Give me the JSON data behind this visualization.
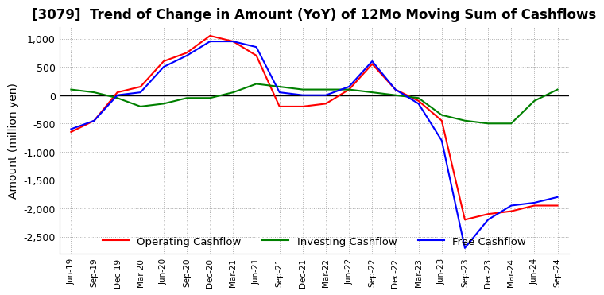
{
  "title": "[3079]  Trend of Change in Amount (YoY) of 12Mo Moving Sum of Cashflows",
  "ylabel": "Amount (million yen)",
  "x_labels": [
    "Jun-19",
    "Sep-19",
    "Dec-19",
    "Mar-20",
    "Jun-20",
    "Sep-20",
    "Dec-20",
    "Mar-21",
    "Jun-21",
    "Sep-21",
    "Dec-21",
    "Mar-22",
    "Jun-22",
    "Sep-22",
    "Dec-22",
    "Mar-23",
    "Jun-23",
    "Sep-23",
    "Dec-23",
    "Mar-24",
    "Jun-24",
    "Sep-24"
  ],
  "operating": [
    -650,
    -450,
    50,
    150,
    600,
    750,
    1050,
    950,
    700,
    -200,
    -200,
    -150,
    100,
    550,
    100,
    -100,
    -450,
    -2200,
    -2100,
    -2050,
    -1950,
    -1950
  ],
  "investing": [
    100,
    50,
    -50,
    -200,
    -150,
    -50,
    -50,
    50,
    200,
    150,
    100,
    100,
    100,
    50,
    0,
    -50,
    -350,
    -450,
    -500,
    -500,
    -100,
    100
  ],
  "free": [
    -600,
    -450,
    0,
    50,
    500,
    700,
    950,
    950,
    850,
    50,
    0,
    0,
    150,
    600,
    100,
    -150,
    -800,
    -2700,
    -2200,
    -1950,
    -1900,
    -1800
  ],
  "ylim": [
    -2800,
    1200
  ],
  "yticks": [
    1000,
    500,
    0,
    -500,
    -1000,
    -1500,
    -2000,
    -2500
  ],
  "operating_color": "#ff0000",
  "investing_color": "#008000",
  "free_color": "#0000ff",
  "background_color": "#ffffff",
  "grid_color": "#aaaaaa",
  "title_fontsize": 12,
  "label_fontsize": 10
}
